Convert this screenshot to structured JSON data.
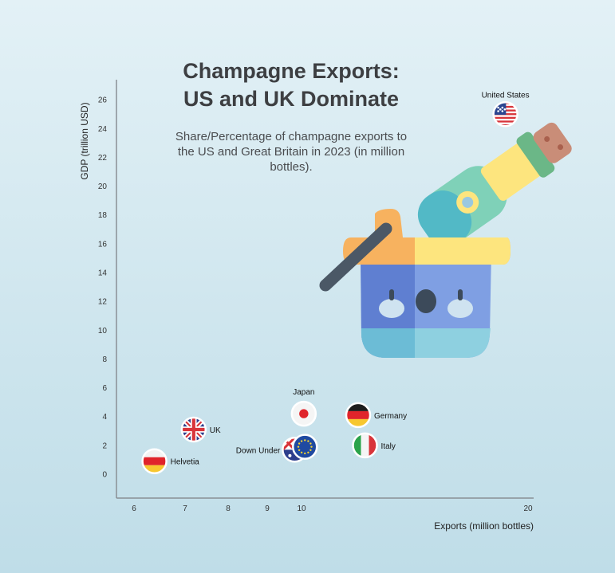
{
  "header": {
    "title_line1": "Champagne Exports:",
    "title_line2": "US and UK Dominate",
    "subtitle": "Share/Percentage of champagne exports to the US and Great Britain in 2023 (in million bottles)."
  },
  "chart_data": {
    "type": "scatter",
    "xlabel": "Exports (million bottles)",
    "ylabel": "GDP (trillion USD)",
    "x_ticks": [
      6,
      7,
      8,
      9,
      10,
      20
    ],
    "y_ticks": [
      0,
      2,
      4,
      6,
      8,
      10,
      12,
      14,
      16,
      18,
      20,
      22,
      24,
      26
    ],
    "ylim": [
      -1.5,
      27.5
    ],
    "grid": false,
    "legend": "none",
    "points": [
      {
        "label": "United States",
        "x": 19.0,
        "y": 25.0,
        "flag": "us-flag-icon"
      },
      {
        "label": "UK",
        "x": 7.2,
        "y": 3.1,
        "flag": "uk-flag-icon"
      },
      {
        "label": "Helvetia",
        "x": 6.4,
        "y": 0.9,
        "flag": "germany-like-flag-icon"
      },
      {
        "label": "Japan",
        "x": 10.1,
        "y": 4.2,
        "flag": "japan-flag-icon"
      },
      {
        "label": "Down Under",
        "x": 9.8,
        "y": 1.7,
        "flag": "australia-flag-icon"
      },
      {
        "label": "",
        "x": 10.15,
        "y": 1.9,
        "flag": "eu-flag-icon"
      },
      {
        "label": "Germany",
        "x": 12.5,
        "y": 4.1,
        "flag": "germany-flag-icon"
      },
      {
        "label": "Italy",
        "x": 12.8,
        "y": 2.0,
        "flag": "italy-flag-icon"
      }
    ]
  },
  "colors": {
    "bucket_blue": "#6f8fd6",
    "bucket_orange": "#f7b25f",
    "bottle_green": "#7fd1b8",
    "label_yellow": "#fde57e",
    "cork": "#c98d78"
  },
  "illustration": "champagne-bucket-icon"
}
